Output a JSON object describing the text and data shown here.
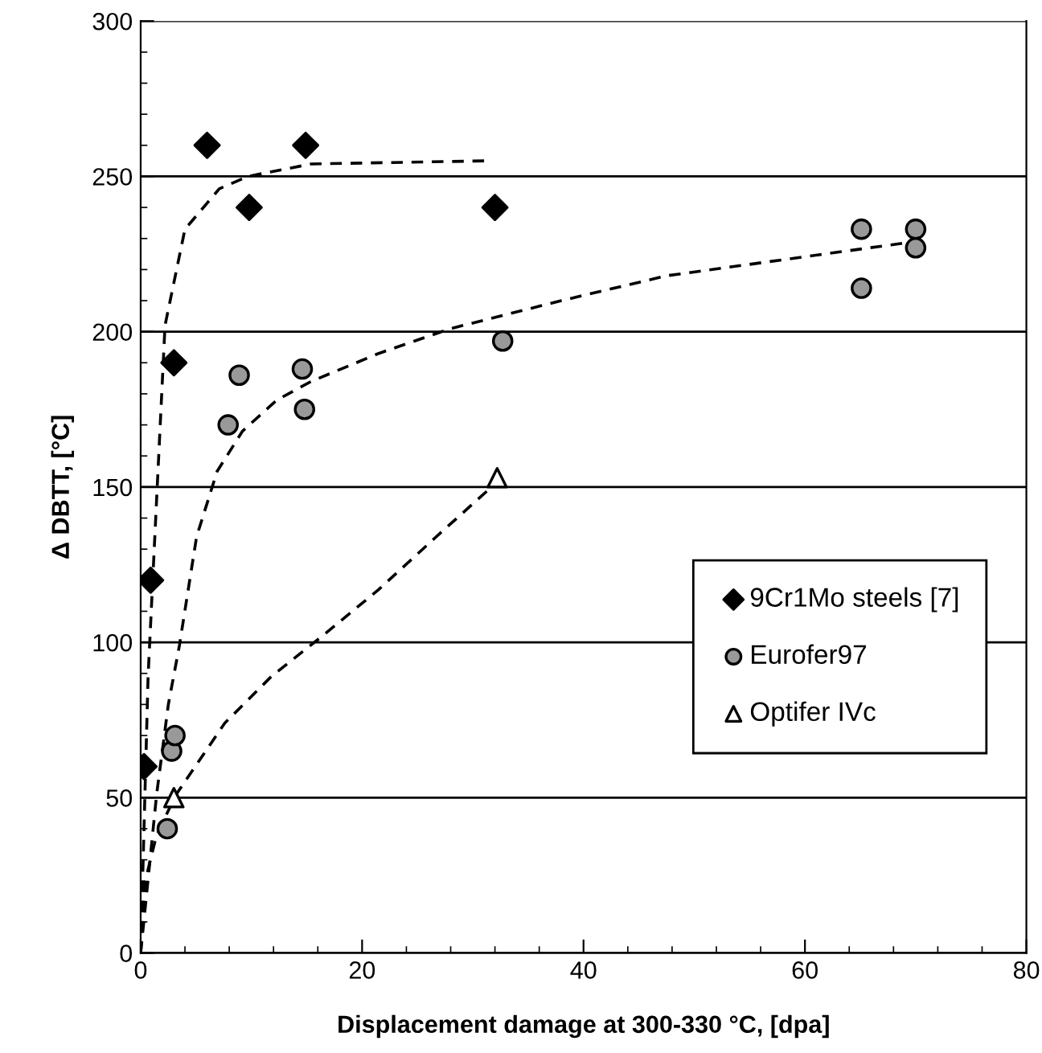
{
  "chart_data": {
    "type": "scatter",
    "xlabel": "Displacement damage at 300-330 °C, [dpa]",
    "ylabel": "Δ DBTT, [°C]",
    "xlim": [
      0,
      80
    ],
    "xticks": [
      0,
      20,
      40,
      60,
      80
    ],
    "ylim": [
      0,
      300
    ],
    "yticks": [
      0,
      50,
      100,
      150,
      200,
      250,
      300
    ],
    "grid": "y",
    "legend": "bottom right",
    "series": [
      {
        "name": "9Cr1Mo steels [7]",
        "marker": "diamond",
        "color": "#000000",
        "x": [
          0.3,
          0.9,
          3.0,
          6.0,
          9.8,
          14.9,
          32.0
        ],
        "values": [
          60,
          120,
          190,
          260,
          240,
          260,
          240
        ]
      },
      {
        "name": "Eurofer97",
        "marker": "circle",
        "color": "#999999",
        "x": [
          2.4,
          2.8,
          3.1,
          7.9,
          8.9,
          14.6,
          14.8,
          32.7,
          65.1,
          65.1,
          70.0,
          70.0
        ],
        "values": [
          40,
          65,
          70,
          170,
          186,
          188,
          175,
          197,
          233,
          214,
          233,
          227
        ]
      },
      {
        "name": "Optifer IVc",
        "marker": "triangle",
        "color": "#ffffff",
        "x": [
          3.0,
          32.2
        ],
        "values": [
          50,
          153
        ]
      },
      {
        "type": "line",
        "line_style": "dashed",
        "marker": "none",
        "color": "#000000",
        "x": [
          0,
          0.67,
          1.44,
          2.2,
          4.0,
          7.1,
          9.7,
          15.4,
          31.3
        ],
        "values": [
          0,
          89,
          146,
          202,
          233,
          246,
          250,
          254,
          255
        ]
      },
      {
        "type": "line",
        "line_style": "dashed",
        "marker": "none",
        "color": "#000000",
        "x": [
          0,
          1.44,
          2.5,
          3.5,
          5.05,
          6.9,
          9.2,
          12.3,
          15.4,
          21.5,
          28.0,
          38.0,
          47.5,
          69.9
        ],
        "values": [
          0,
          51,
          80,
          99,
          134,
          155,
          168,
          178,
          184,
          193,
          201,
          210,
          218,
          229
        ]
      },
      {
        "type": "line",
        "line_style": "dashed",
        "marker": "none",
        "color": "#000000",
        "x": [
          0,
          0.4,
          1.44,
          3.2,
          7.6,
          11.8,
          16.4,
          21.5,
          26.7,
          32.0
        ],
        "values": [
          0,
          23,
          38,
          51,
          74,
          89,
          102,
          117,
          134,
          151
        ]
      }
    ]
  }
}
